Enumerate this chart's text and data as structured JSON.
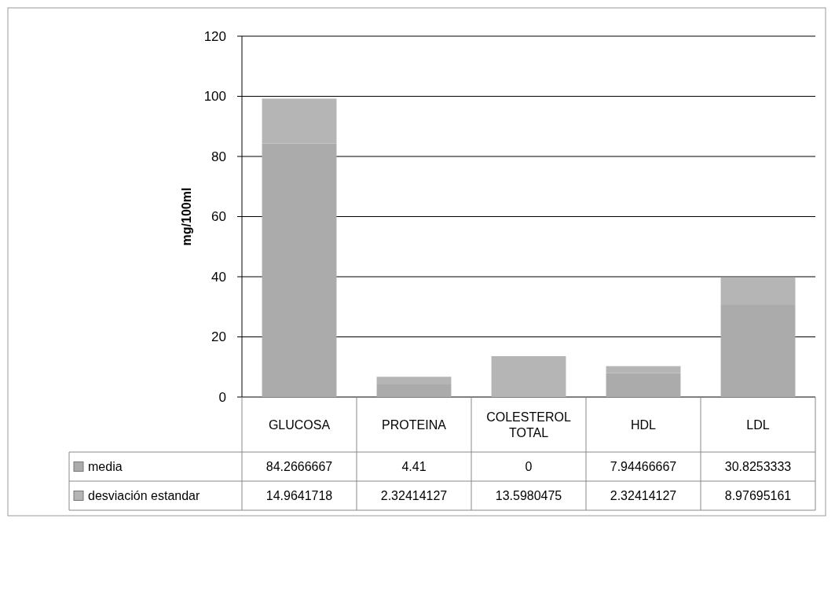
{
  "chart_data": {
    "type": "bar",
    "stacked": true,
    "ylabel": "mg/100ml",
    "categories": [
      "GLUCOSA",
      "PROTEINA",
      "COLESTEROL TOTAL",
      "HDL",
      "LDL"
    ],
    "series": [
      {
        "name": "media",
        "color": "#ababab",
        "values": [
          84.2666667,
          4.41,
          0,
          7.94466667,
          30.8253333
        ]
      },
      {
        "name": "desviación estandar",
        "color": "#b5b5b5",
        "values": [
          14.9641718,
          2.32414127,
          13.5980475,
          2.32414127,
          8.97695161
        ]
      }
    ],
    "ylim": [
      0,
      120
    ],
    "yticks": [
      0,
      20,
      40,
      60,
      80,
      100,
      120
    ],
    "grid": "y",
    "data_labels": true,
    "legend": "bottom"
  }
}
